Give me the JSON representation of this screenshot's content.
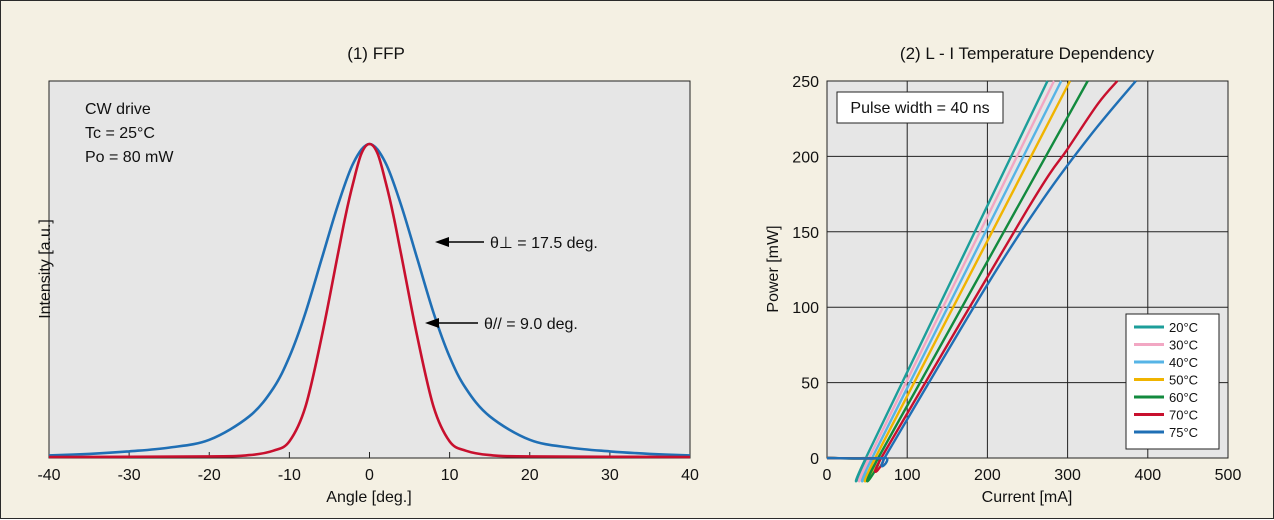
{
  "chart_data": [
    {
      "type": "line",
      "title": "(1) FFP",
      "xlabel": "Angle [deg.]",
      "ylabel": "Intensity [a.u.]",
      "xlim": [
        -40,
        40
      ],
      "ylim": [
        0,
        1.1
      ],
      "xticks": [
        "-40",
        "-30",
        "-20",
        "-10",
        "0",
        "10",
        "20",
        "30",
        "40"
      ],
      "grid": false,
      "conditions": [
        "CW drive",
        "Tc = 25°C",
        "Po = 80 mW"
      ],
      "annotations": [
        {
          "text": "θ⊥ = 17.5 deg.",
          "series": "perpendicular"
        },
        {
          "text": "θ// = 9.0 deg.",
          "series": "parallel"
        }
      ],
      "series": [
        {
          "key": "perpendicular",
          "color": "#1f6fb5",
          "x": [
            -40,
            -35,
            -30,
            -25,
            -20,
            -15,
            -12,
            -10,
            -8,
            -6,
            -4,
            -2,
            0,
            2,
            4,
            6,
            8,
            10,
            12,
            15,
            20,
            25,
            30,
            35,
            40
          ],
          "y": [
            0.005,
            0.01,
            0.018,
            0.03,
            0.055,
            0.13,
            0.22,
            0.32,
            0.46,
            0.63,
            0.8,
            0.94,
            1.0,
            0.94,
            0.8,
            0.63,
            0.46,
            0.32,
            0.22,
            0.13,
            0.055,
            0.03,
            0.018,
            0.01,
            0.005
          ]
        },
        {
          "key": "parallel",
          "color": "#c8102e",
          "x": [
            -40,
            -20,
            -15,
            -12,
            -10,
            -8,
            -6,
            -4,
            -3,
            -2,
            -1,
            0,
            1,
            2,
            3,
            4,
            6,
            8,
            10,
            12,
            15,
            20,
            40
          ],
          "y": [
            0.0,
            0.002,
            0.006,
            0.02,
            0.05,
            0.16,
            0.38,
            0.64,
            0.77,
            0.88,
            0.97,
            1.0,
            0.97,
            0.88,
            0.77,
            0.64,
            0.38,
            0.16,
            0.05,
            0.02,
            0.006,
            0.002,
            0.0
          ]
        }
      ]
    },
    {
      "type": "line",
      "title": "(2) L - I Temperature Dependency",
      "xlabel": "Current [mA]",
      "ylabel": "Power [mW]",
      "xlim": [
        0,
        500
      ],
      "ylim": [
        0,
        250
      ],
      "xticks": [
        "0",
        "100",
        "200",
        "300",
        "400",
        "500"
      ],
      "yticks": [
        "0",
        "50",
        "100",
        "150",
        "200",
        "250"
      ],
      "grid": true,
      "note": "Pulse width = 40 ns",
      "legend_position": "bottom-right",
      "series": [
        {
          "name": "20°C",
          "color": "#1c9e9a",
          "x": [
            0,
            48,
            52,
            275
          ],
          "y": [
            0,
            0,
            4,
            250
          ]
        },
        {
          "name": "30°C",
          "color": "#f2a7c3",
          "x": [
            0,
            52,
            56,
            283
          ],
          "y": [
            0,
            0,
            4,
            250
          ]
        },
        {
          "name": "40°C",
          "color": "#56b4e6",
          "x": [
            0,
            56,
            60,
            292
          ],
          "y": [
            0,
            0,
            4,
            250
          ]
        },
        {
          "name": "50°C",
          "color": "#f0b400",
          "x": [
            0,
            60,
            64,
            303
          ],
          "y": [
            0,
            0,
            4,
            250
          ]
        },
        {
          "name": "60°C",
          "color": "#128a3e",
          "x": [
            0,
            64,
            68,
            325
          ],
          "y": [
            0,
            0,
            4,
            250
          ]
        },
        {
          "name": "70°C",
          "color": "#c8102e",
          "x": [
            0,
            68,
            72,
            250,
            300,
            338,
            362
          ],
          "y": [
            0,
            0,
            4,
            165,
            205,
            235,
            250
          ]
        },
        {
          "name": "75°C",
          "color": "#1f6fb5",
          "x": [
            0,
            72,
            76,
            200,
            270,
            330,
            385
          ],
          "y": [
            0,
            0,
            4,
            115,
            172,
            215,
            250
          ]
        }
      ]
    }
  ]
}
